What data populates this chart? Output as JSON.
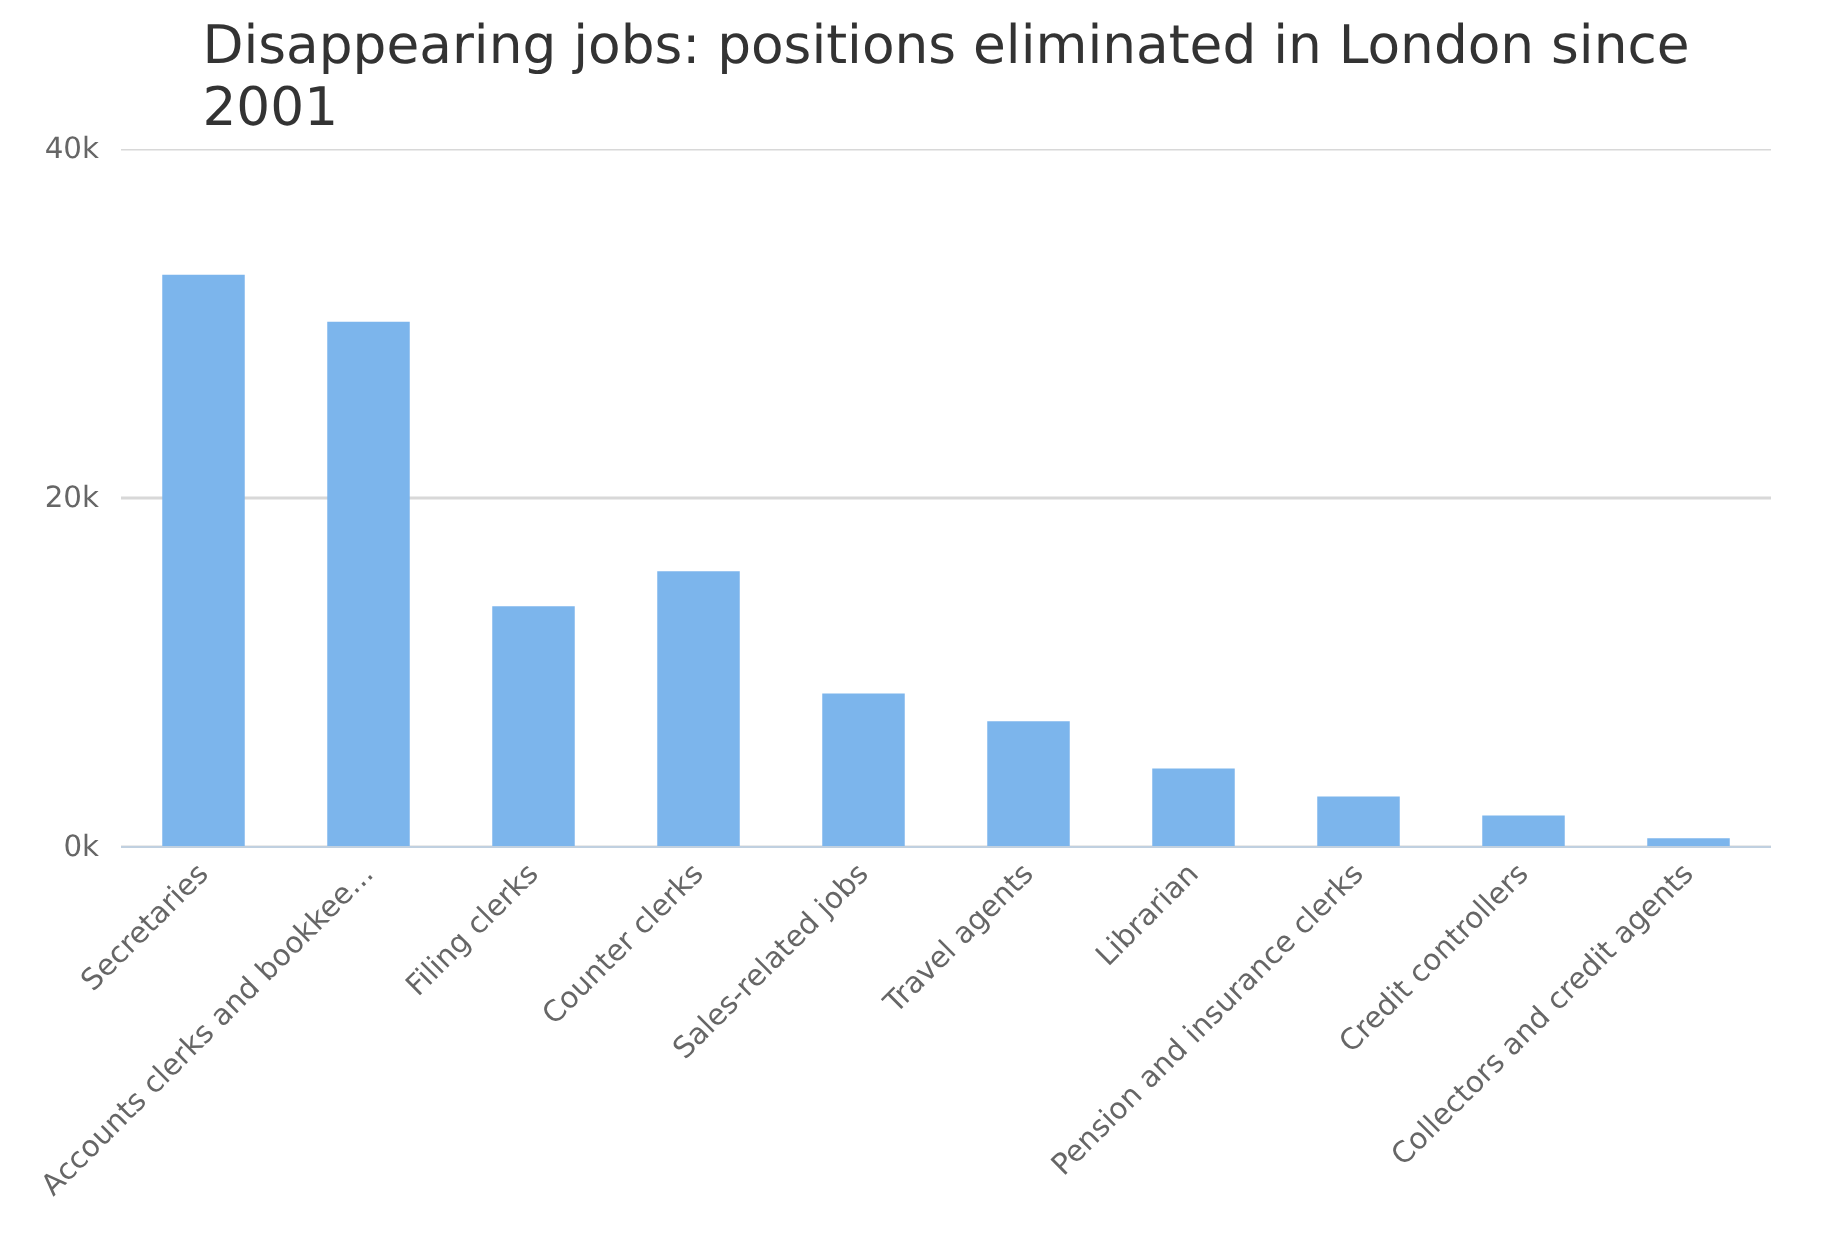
{
  "chart_data": {
    "type": "bar",
    "title": "Disappearing jobs: positions eliminated in London since 2001",
    "categories": [
      "Secretaries",
      "Accounts clerks and bookkee...",
      "Filing clerks",
      "Counter clerks",
      "Sales-related jobs",
      "Travel agents",
      "Librarian",
      "Pension and insurance clerks",
      "Credit controllers",
      "Collectors and credit agents"
    ],
    "values": [
      32800,
      30100,
      13800,
      15800,
      8800,
      7200,
      4500,
      2900,
      1800,
      500
    ],
    "color": "#7cb5ec",
    "ylim": [
      0,
      40000
    ],
    "yticks": [
      {
        "value": 0,
        "label": "0k"
      },
      {
        "value": 20000,
        "label": "20k"
      },
      {
        "value": 40000,
        "label": "40k"
      }
    ],
    "grid": "y"
  }
}
